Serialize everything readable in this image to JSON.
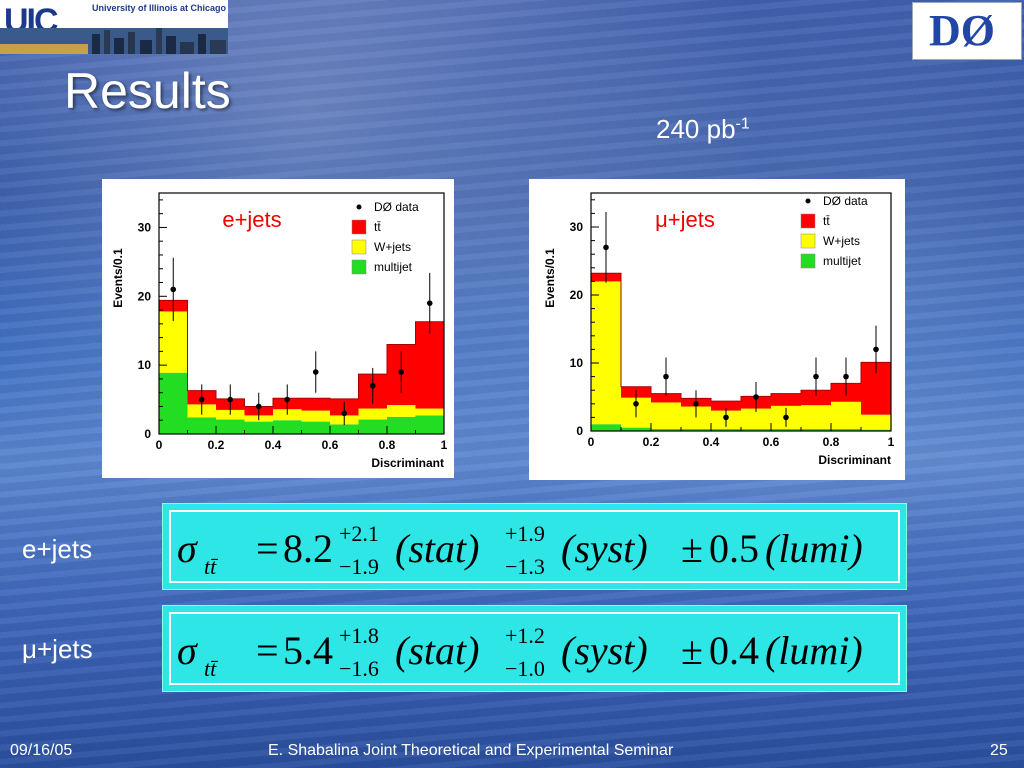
{
  "slide": {
    "title": "Results",
    "lumi_value": "240 pb",
    "lumi_exp": "-1",
    "logo_uic_text": "UIC",
    "logo_uic_sub": "University of Illinois at Chicago",
    "logo_d0_text": "DØ",
    "label_ejets": "e+jets",
    "label_mujets": "μ+jets",
    "footer_date": "09/16/05",
    "footer_title": "E. Shabalina Joint Theoretical and Experimental Seminar",
    "footer_page": "25"
  },
  "formulas": [
    {
      "lhs_main": "σ",
      "lhs_sub": "tt̄",
      "value": "8.2",
      "stat_up": "+2.1",
      "stat_down": "−1.9",
      "syst_up": "+1.9",
      "syst_down": "−1.3",
      "lumi": "0.5",
      "stat": "(stat)",
      "syst": "(syst)",
      "lumi_label": "(lumi)",
      "pm": "±",
      "eq": "="
    },
    {
      "lhs_main": "σ",
      "lhs_sub": "tt̄",
      "value": "5.4",
      "stat_up": "+1.8",
      "stat_down": "−1.6",
      "syst_up": "+1.2",
      "syst_down": "−1.0",
      "lumi": "0.4",
      "stat": "(stat)",
      "syst": "(syst)",
      "lumi_label": "(lumi)",
      "pm": "±",
      "eq": "="
    }
  ],
  "chart_data": [
    {
      "type": "bar",
      "title": "e+jets",
      "xlabel": "Discriminant",
      "ylabel": "Events/0.1",
      "xlim": [
        0,
        1
      ],
      "ylim": [
        0,
        35
      ],
      "xticks": [
        "0",
        "0.2",
        "0.4",
        "0.6",
        "0.8",
        "1"
      ],
      "xtick_values": [
        0,
        0.2,
        0.4,
        0.6,
        0.8,
        1
      ],
      "yticks": [
        "0",
        "10",
        "20",
        "30"
      ],
      "ytick_values": [
        0,
        10,
        20,
        30
      ],
      "bin_edges": [
        0,
        0.1,
        0.2,
        0.3,
        0.4,
        0.5,
        0.6,
        0.7,
        0.8,
        0.9,
        1.0
      ],
      "legend": [
        "DØ data",
        "tt̄",
        "W+jets",
        "multijet"
      ],
      "legend_position": "top-right",
      "series": [
        {
          "name": "multijet",
          "color": "#22dd22",
          "values": [
            8.9,
            2.4,
            2.1,
            1.8,
            2.0,
            1.8,
            1.4,
            2.1,
            2.5,
            2.7
          ]
        },
        {
          "name": "W+jets",
          "color": "#ffff00",
          "values": [
            8.9,
            1.9,
            1.4,
            0.9,
            1.6,
            1.6,
            1.3,
            1.6,
            1.7,
            1.0
          ]
        },
        {
          "name": "tt̄",
          "color": "#ff0000",
          "values": [
            1.6,
            2.0,
            1.6,
            1.3,
            1.6,
            1.8,
            2.4,
            5.0,
            8.8,
            12.6
          ]
        }
      ],
      "data": {
        "name": "DØ data",
        "x": [
          0.05,
          0.15,
          0.25,
          0.35,
          0.45,
          0.55,
          0.65,
          0.75,
          0.85,
          0.95
        ],
        "y": [
          21,
          5,
          5,
          4,
          5,
          9,
          3,
          7,
          9,
          19
        ],
        "err": [
          4.6,
          2.2,
          2.2,
          2.0,
          2.2,
          3.0,
          1.7,
          2.6,
          3.0,
          4.4
        ]
      }
    },
    {
      "type": "bar",
      "title": "μ+jets",
      "xlabel": "Discriminant",
      "ylabel": "Events/0.1",
      "xlim": [
        0,
        1
      ],
      "ylim": [
        0,
        35
      ],
      "xticks": [
        "0",
        "0.2",
        "0.4",
        "0.6",
        "0.8",
        "1"
      ],
      "xtick_values": [
        0,
        0.2,
        0.4,
        0.6,
        0.8,
        1
      ],
      "yticks": [
        "0",
        "10",
        "20",
        "30"
      ],
      "ytick_values": [
        0,
        10,
        20,
        30
      ],
      "bin_edges": [
        0,
        0.1,
        0.2,
        0.3,
        0.4,
        0.5,
        0.6,
        0.7,
        0.8,
        0.9,
        1.0
      ],
      "legend": [
        "DØ data",
        "tt̄",
        "W+jets",
        "multijet"
      ],
      "legend_position": "top-right",
      "series": [
        {
          "name": "multijet",
          "color": "#22dd22",
          "values": [
            1.0,
            0.5,
            0.3,
            0.3,
            0.3,
            0.3,
            0.3,
            0.3,
            0.3,
            0.2
          ]
        },
        {
          "name": "W+jets",
          "color": "#ffff00",
          "values": [
            21.0,
            4.4,
            3.9,
            3.3,
            2.7,
            3.0,
            3.4,
            3.5,
            4.0,
            2.2
          ]
        },
        {
          "name": "tt̄",
          "color": "#ff0000",
          "values": [
            1.2,
            1.6,
            1.3,
            1.2,
            1.4,
            1.8,
            1.8,
            2.2,
            2.7,
            7.7
          ]
        }
      ],
      "data": {
        "name": "DØ data",
        "x": [
          0.05,
          0.15,
          0.25,
          0.35,
          0.45,
          0.55,
          0.65,
          0.75,
          0.85,
          0.95
        ],
        "y": [
          27,
          4,
          8,
          4,
          2,
          5,
          2,
          8,
          8,
          12
        ],
        "err": [
          5.2,
          2.0,
          2.8,
          2.0,
          1.4,
          2.2,
          1.4,
          2.8,
          2.8,
          3.5
        ]
      }
    }
  ]
}
